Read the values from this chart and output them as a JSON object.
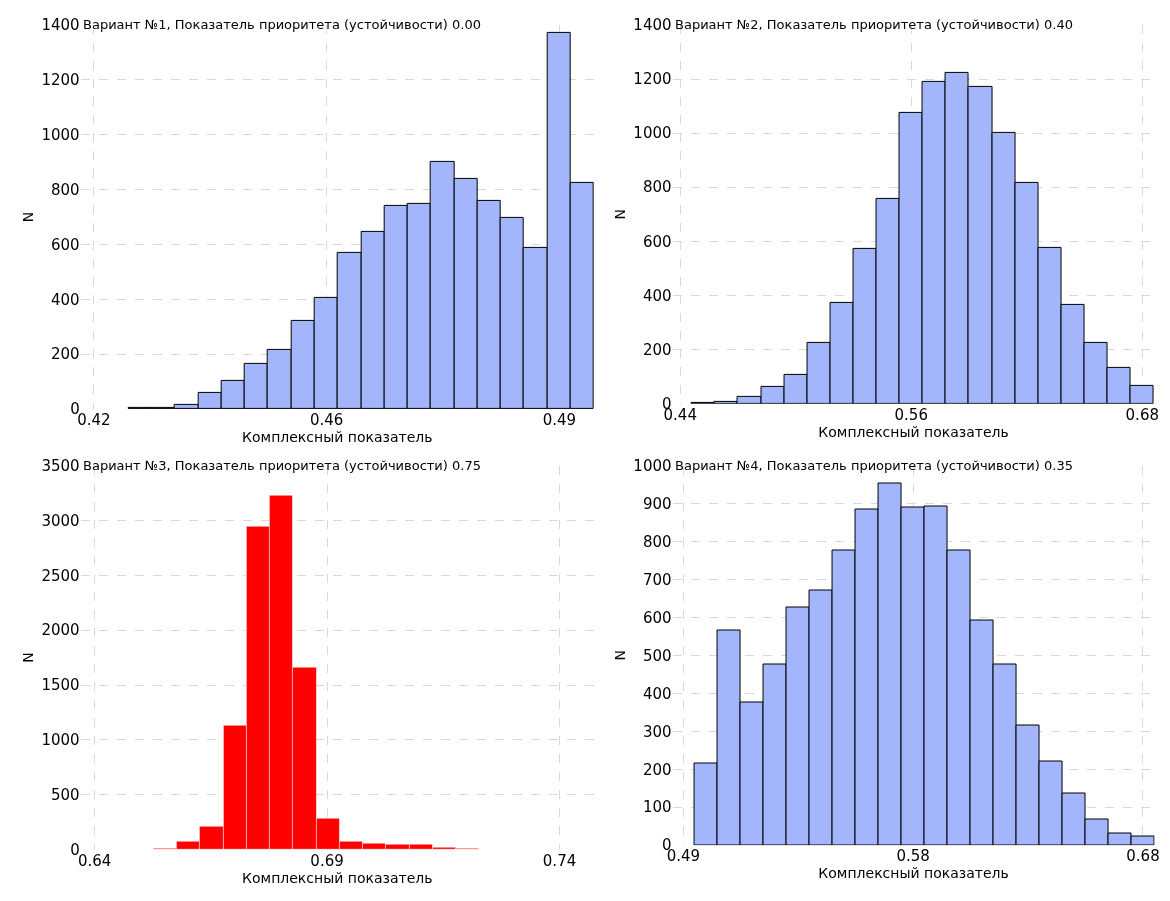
{
  "chart_data": [
    {
      "type": "histogram",
      "title": "Вариант №1, Показатель приоритета (устойчивости) 0.00",
      "xlabel": "Комплексный показатель",
      "ylabel": "N",
      "color": "#a4b6fb",
      "grid": true,
      "bins": [
        0.4252,
        0.4287,
        0.4322,
        0.4357,
        0.4392,
        0.4427,
        0.4462,
        0.4497,
        0.4532,
        0.4567,
        0.4602,
        0.4637,
        0.4672,
        0.4707,
        0.4742,
        0.4777,
        0.4812,
        0.4847,
        0.4882,
        0.4917,
        0.4952
      ],
      "values": [
        3,
        3,
        16,
        60,
        102,
        165,
        216,
        321,
        404,
        570,
        646,
        742,
        747,
        900,
        838,
        758,
        696,
        589,
        1372,
        823
      ],
      "xlim": [
        0.418,
        0.4952
      ],
      "xticks": [
        0.42,
        {
          "value": 0.455,
          "label": "0.46"
        },
        0.49
      ],
      "ylim": [
        0,
        1400
      ],
      "yticks": [
        0,
        200,
        400,
        600,
        800,
        1000,
        1200,
        1400
      ]
    },
    {
      "type": "histogram",
      "title": "Вариант №2, Показатель приоритета (устойчивости) 0.40",
      "xlabel": "Комплексный показатель",
      "ylabel": "N",
      "color": "#a4b6fb",
      "grid": true,
      "bins": [
        0.446,
        0.458,
        0.47,
        0.482,
        0.494,
        0.506,
        0.518,
        0.53,
        0.542,
        0.554,
        0.566,
        0.578,
        0.59,
        0.602,
        0.614,
        0.626,
        0.638,
        0.65,
        0.662,
        0.674,
        0.686
      ],
      "values": [
        3,
        8,
        26,
        62,
        107,
        223,
        374,
        574,
        756,
        1075,
        1189,
        1221,
        1170,
        1001,
        815,
        577,
        366,
        223,
        133,
        64
      ],
      "xlim": [
        0.436,
        0.6864
      ],
      "xticks": [
        0.44,
        0.56,
        0.68
      ],
      "ylim": [
        0,
        1400
      ],
      "yticks": [
        0,
        200,
        400,
        600,
        800,
        1000,
        1200,
        1400
      ]
    },
    {
      "type": "histogram",
      "title": "Вариант №3, Показатель приоритета (устойчивости) 0.75",
      "xlabel": "Комплексный показатель",
      "ylabel": "N",
      "color": "#ff0000",
      "grid": true,
      "bins": [
        0.6527,
        0.6577,
        0.6627,
        0.6677,
        0.6727,
        0.6777,
        0.6827,
        0.6877,
        0.6927,
        0.6977,
        0.7027,
        0.7077,
        0.7127,
        0.7177,
        0.7227,
        0.7277,
        0.7327
      ],
      "values": [
        10,
        70,
        210,
        1130,
        2940,
        3230,
        1660,
        280,
        70,
        60,
        50,
        50,
        20,
        10,
        0,
        0
      ],
      "xlim": [
        0.637,
        0.7474
      ],
      "xticks": [
        0.64,
        0.69,
        0.74
      ],
      "ylim": [
        0,
        3500
      ],
      "yticks": [
        0,
        500,
        1000,
        1500,
        2000,
        2500,
        3000,
        3500
      ]
    },
    {
      "type": "histogram",
      "title": "Вариант №4, Показатель приоритета (устойчивости) 0.35",
      "xlabel": "Комплексный показатель",
      "ylabel": "N",
      "color": "#a4b6fb",
      "grid": true,
      "bins": [
        0.4948,
        0.5043,
        0.5138,
        0.5233,
        0.5328,
        0.5423,
        0.5518,
        0.5613,
        0.5708,
        0.5803,
        0.5898,
        0.5993,
        0.6088,
        0.6183,
        0.6278,
        0.6373,
        0.6468,
        0.6563,
        0.6658,
        0.6753,
        0.6848
      ],
      "values": [
        214,
        566,
        377,
        475,
        625,
        671,
        776,
        885,
        953,
        890,
        892,
        777,
        593,
        477,
        316,
        220,
        135,
        68,
        30,
        23
      ],
      "xlim": [
        0.4855,
        0.6848
      ],
      "xticks": [
        0.49,
        {
          "value": 0.585,
          "label": "0.58"
        },
        0.68
      ],
      "ylim": [
        0,
        1000
      ],
      "yticks": [
        0,
        100,
        200,
        300,
        400,
        500,
        600,
        700,
        800,
        900,
        1000
      ]
    }
  ]
}
